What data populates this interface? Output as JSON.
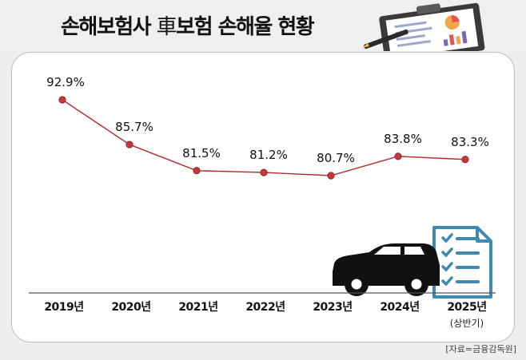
{
  "header": {
    "title_prefix": "손해보험사 ",
    "title_hanja": "車",
    "title_suffix": "보험 손해율 현황"
  },
  "chart_data": {
    "type": "line",
    "title": "손해보험사 車보험 손해율 현황",
    "categories": [
      "2019년",
      "2020년",
      "2021년",
      "2022년",
      "2023년",
      "2024년",
      "2025년"
    ],
    "sub_labels": [
      "",
      "",
      "",
      "",
      "",
      "",
      "(상반기)"
    ],
    "values": [
      92.9,
      85.7,
      81.5,
      81.2,
      80.7,
      83.8,
      83.3
    ],
    "value_labels": [
      "92.9%",
      "85.7%",
      "81.5%",
      "81.2%",
      "80.7%",
      "83.8%",
      "83.3%"
    ],
    "unit": "%",
    "grid": false,
    "legend": "none",
    "colors": {
      "line": "#b22a2a",
      "marker": "#c0393b",
      "axis": "#555555",
      "icon": "#3e89b0"
    },
    "icons": [
      "car-icon",
      "checklist-icon",
      "clipboard-chart-icon"
    ]
  },
  "footer": {
    "source": "[자료=금융감독원]"
  }
}
